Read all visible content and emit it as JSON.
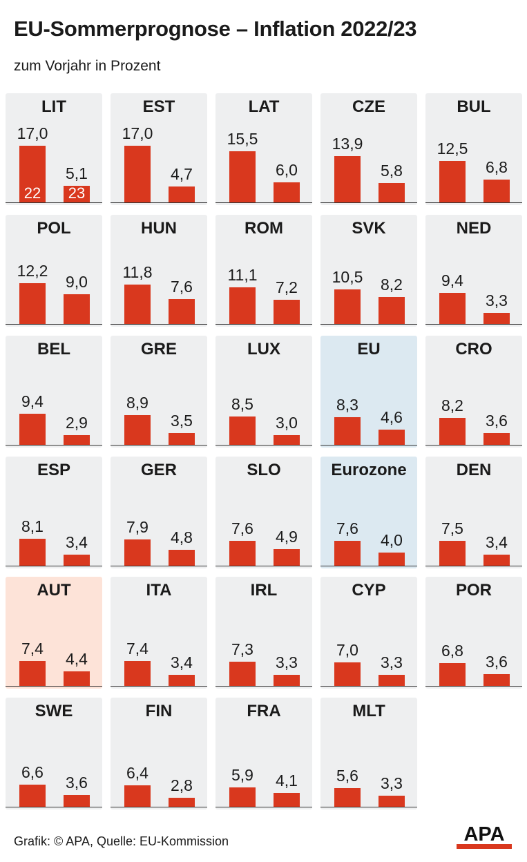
{
  "title": "EU-Sommerprognose – Inflation 2022/23",
  "subtitle": "zum Vorjahr in Prozent",
  "footer": "Grafik: © APA, Quelle: EU-Kommission",
  "logo_text": "APA",
  "colors": {
    "bar": "#d9381e",
    "panel": "#eeeff0",
    "panel_highlight_eu": "#dce9f1",
    "panel_highlight_aut": "#fde3d8"
  },
  "chart_data": {
    "type": "bar",
    "title": "EU-Sommerprognose – Inflation 2022/23",
    "subtitle": "zum Vorjahr in Prozent",
    "year_labels": [
      "22",
      "23"
    ],
    "panels": [
      {
        "country": "LIT",
        "values": [
          17.0,
          5.1
        ],
        "labels": [
          "17,0",
          "5,1"
        ],
        "show_years": true
      },
      {
        "country": "EST",
        "values": [
          17.0,
          4.7
        ],
        "labels": [
          "17,0",
          "4,7"
        ]
      },
      {
        "country": "LAT",
        "values": [
          15.5,
          6.0
        ],
        "labels": [
          "15,5",
          "6,0"
        ]
      },
      {
        "country": "CZE",
        "values": [
          13.9,
          5.8
        ],
        "labels": [
          "13,9",
          "5,8"
        ]
      },
      {
        "country": "BUL",
        "values": [
          12.5,
          6.8
        ],
        "labels": [
          "12,5",
          "6,8"
        ]
      },
      {
        "country": "POL",
        "values": [
          12.2,
          9.0
        ],
        "labels": [
          "12,2",
          "9,0"
        ]
      },
      {
        "country": "HUN",
        "values": [
          11.8,
          7.6
        ],
        "labels": [
          "11,8",
          "7,6"
        ]
      },
      {
        "country": "ROM",
        "values": [
          11.1,
          7.2
        ],
        "labels": [
          "11,1",
          "7,2"
        ]
      },
      {
        "country": "SVK",
        "values": [
          10.5,
          8.2
        ],
        "labels": [
          "10,5",
          "8,2"
        ]
      },
      {
        "country": "NED",
        "values": [
          9.4,
          3.3
        ],
        "labels": [
          "9,4",
          "3,3"
        ]
      },
      {
        "country": "BEL",
        "values": [
          9.4,
          2.9
        ],
        "labels": [
          "9,4",
          "2,9"
        ]
      },
      {
        "country": "GRE",
        "values": [
          8.9,
          3.5
        ],
        "labels": [
          "8,9",
          "3,5"
        ]
      },
      {
        "country": "LUX",
        "values": [
          8.5,
          3.0
        ],
        "labels": [
          "8,5",
          "3,0"
        ]
      },
      {
        "country": "EU",
        "values": [
          8.3,
          4.6
        ],
        "labels": [
          "8,3",
          "4,6"
        ],
        "highlight": "eu"
      },
      {
        "country": "CRO",
        "values": [
          8.2,
          3.6
        ],
        "labels": [
          "8,2",
          "3,6"
        ]
      },
      {
        "country": "ESP",
        "values": [
          8.1,
          3.4
        ],
        "labels": [
          "8,1",
          "3,4"
        ]
      },
      {
        "country": "GER",
        "values": [
          7.9,
          4.8
        ],
        "labels": [
          "7,9",
          "4,8"
        ]
      },
      {
        "country": "SLO",
        "values": [
          7.6,
          4.9
        ],
        "labels": [
          "7,6",
          "4,9"
        ]
      },
      {
        "country": "Eurozone",
        "values": [
          7.6,
          4.0
        ],
        "labels": [
          "7,6",
          "4,0"
        ],
        "highlight": "eu"
      },
      {
        "country": "DEN",
        "values": [
          7.5,
          3.4
        ],
        "labels": [
          "7,5",
          "3,4"
        ]
      },
      {
        "country": "AUT",
        "values": [
          7.4,
          4.4
        ],
        "labels": [
          "7,4",
          "4,4"
        ],
        "highlight": "aut"
      },
      {
        "country": "ITA",
        "values": [
          7.4,
          3.4
        ],
        "labels": [
          "7,4",
          "3,4"
        ]
      },
      {
        "country": "IRL",
        "values": [
          7.3,
          3.3
        ],
        "labels": [
          "7,3",
          "3,3"
        ]
      },
      {
        "country": "CYP",
        "values": [
          7.0,
          3.3
        ],
        "labels": [
          "7,0",
          "3,3"
        ]
      },
      {
        "country": "POR",
        "values": [
          6.8,
          3.6
        ],
        "labels": [
          "6,8",
          "3,6"
        ]
      },
      {
        "country": "SWE",
        "values": [
          6.6,
          3.6
        ],
        "labels": [
          "6,6",
          "3,6"
        ]
      },
      {
        "country": "FIN",
        "values": [
          6.4,
          2.8
        ],
        "labels": [
          "6,4",
          "2,8"
        ]
      },
      {
        "country": "FRA",
        "values": [
          5.9,
          4.1
        ],
        "labels": [
          "5,9",
          "4,1"
        ]
      },
      {
        "country": "MLT",
        "values": [
          5.6,
          3.3
        ],
        "labels": [
          "5,6",
          "3,3"
        ]
      }
    ]
  }
}
